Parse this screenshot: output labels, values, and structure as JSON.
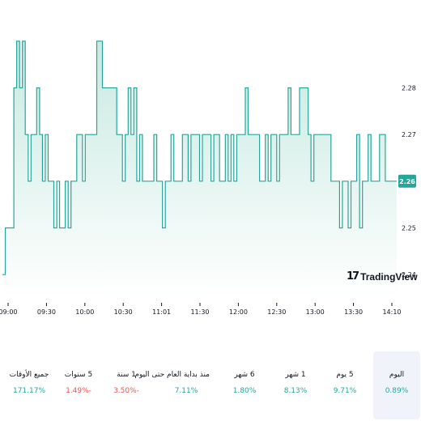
{
  "brand": {
    "logo_glyph": "17",
    "name": "TradingView"
  },
  "colors": {
    "line": "#26a69a",
    "fill_top": "#c8e9e1",
    "fill_bottom": "#ffffff",
    "up": "#26a69a",
    "down": "#ef5350"
  },
  "chart_data": {
    "type": "area",
    "series": [
      {
        "values": [
          2.24,
          2.25,
          2.25,
          2.25,
          2.28,
          2.29,
          2.28,
          2.29,
          2.27,
          2.26,
          2.27,
          2.27,
          2.28,
          2.27,
          2.26,
          2.27,
          2.26,
          2.26,
          2.25,
          2.26,
          2.25,
          2.25,
          2.26,
          2.25,
          2.26,
          2.26,
          2.27,
          2.27,
          2.26,
          2.27,
          2.27,
          2.27,
          2.27,
          2.29,
          2.29,
          2.28,
          2.28,
          2.28,
          2.28,
          2.28,
          2.27,
          2.27,
          2.26,
          2.27,
          2.28,
          2.27,
          2.28,
          2.26,
          2.27,
          2.26,
          2.26,
          2.26,
          2.26,
          2.27,
          2.26,
          2.26,
          2.25,
          2.26,
          2.26,
          2.27,
          2.26,
          2.26,
          2.26,
          2.27,
          2.27,
          2.26,
          2.27,
          2.27,
          2.27,
          2.26,
          2.27,
          2.27,
          2.27,
          2.26,
          2.27,
          2.27,
          2.26,
          2.26,
          2.27,
          2.26,
          2.27,
          2.26,
          2.27,
          2.27,
          2.27,
          2.28,
          2.27,
          2.27,
          2.27,
          2.27,
          2.26,
          2.26,
          2.27,
          2.26,
          2.27,
          2.27,
          2.26,
          2.27,
          2.27,
          2.27,
          2.28,
          2.27,
          2.27,
          2.27,
          2.28,
          2.28,
          2.28,
          2.27,
          2.26,
          2.27,
          2.27,
          2.27,
          2.27,
          2.27,
          2.27,
          2.26,
          2.26,
          2.26,
          2.25,
          2.26,
          2.26,
          2.25,
          2.26,
          2.26,
          2.27,
          2.25,
          2.26,
          2.26,
          2.27,
          2.26,
          2.26,
          2.26,
          2.27,
          2.27,
          2.26,
          2.26,
          2.26,
          2.26
        ]
      }
    ],
    "x_tick_labels": [
      "09:00",
      "09:30",
      "10:00",
      "10:30",
      "11:01",
      "11:30",
      "12:00",
      "12:30",
      "13:00",
      "13:30",
      "14:10"
    ],
    "y_tick_labels": [
      "2.28",
      "2.27",
      "2.26",
      "2.25",
      "2.24"
    ],
    "ylim": [
      2.235,
      2.295
    ],
    "last_price": "2.26",
    "grid": false
  },
  "performance": [
    {
      "label": "اليوم",
      "value": "0.89%",
      "direction": "up",
      "selected": true
    },
    {
      "label": "5 يوم",
      "value": "9.71%",
      "direction": "up",
      "selected": false
    },
    {
      "label": "1 شهر",
      "value": "8.13%",
      "direction": "up",
      "selected": false
    },
    {
      "label": "6 شهر",
      "value": "1.80%",
      "direction": "up",
      "selected": false
    },
    {
      "label": "منذ بداية العام حتى اليوم",
      "value": "7.11%",
      "direction": "up",
      "selected": false
    },
    {
      "label": "1 سنة",
      "value": "3.50%-",
      "direction": "down",
      "selected": false
    },
    {
      "label": "5 سنوات",
      "value": "1.49%-",
      "direction": "down",
      "selected": false
    },
    {
      "label": "جميع الأوقات",
      "value": "171.17%",
      "direction": "up",
      "selected": false
    }
  ]
}
